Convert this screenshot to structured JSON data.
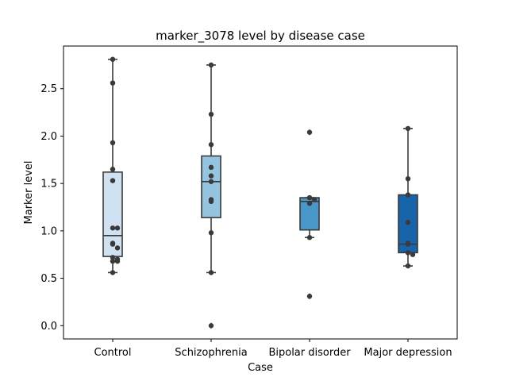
{
  "chart_data": {
    "type": "box",
    "title": "marker_3078 level by disease case",
    "xlabel": "Case",
    "ylabel": "Marker level",
    "ylim": [
      -0.14,
      2.95
    ],
    "yticks": [
      0.0,
      0.5,
      1.0,
      1.5,
      2.0,
      2.5
    ],
    "ytick_labels": [
      "0.0",
      "0.5",
      "1.0",
      "1.5",
      "2.0",
      "2.5"
    ],
    "grid": false,
    "categories": [
      "Control",
      "Schizophrenia",
      "Bipolar disorder",
      "Major depression"
    ],
    "colors": [
      "#d0e1f2",
      "#94c4df",
      "#4a98c9",
      "#1764ab"
    ],
    "boxes": [
      {
        "q1": 0.73,
        "median": 0.95,
        "q3": 1.62,
        "whisker_low": 0.56,
        "whisker_high": 2.81,
        "outliers": [],
        "points": [
          2.81,
          2.56,
          1.93,
          1.65,
          1.53,
          1.03,
          1.03,
          0.87,
          0.86,
          0.82,
          0.72,
          0.7,
          0.68,
          0.68,
          0.56
        ]
      },
      {
        "q1": 1.14,
        "median": 1.52,
        "q3": 1.79,
        "whisker_low": 0.56,
        "whisker_high": 2.75,
        "outliers": [
          0.0
        ],
        "points": [
          2.75,
          2.23,
          1.91,
          1.67,
          1.58,
          1.52,
          1.33,
          1.31,
          0.98,
          0.56,
          0.0
        ]
      },
      {
        "q1": 1.01,
        "median": 1.31,
        "q3": 1.35,
        "whisker_low": 0.93,
        "whisker_high": 1.35,
        "outliers": [
          2.04,
          0.31
        ],
        "points": [
          2.04,
          1.35,
          1.33,
          1.29,
          0.93,
          0.31
        ]
      },
      {
        "q1": 0.77,
        "median": 0.86,
        "q3": 1.38,
        "whisker_low": 0.63,
        "whisker_high": 2.08,
        "outliers": [],
        "points": [
          2.08,
          1.55,
          1.38,
          1.09,
          0.87,
          0.86,
          0.77,
          0.75,
          0.63
        ]
      }
    ]
  }
}
